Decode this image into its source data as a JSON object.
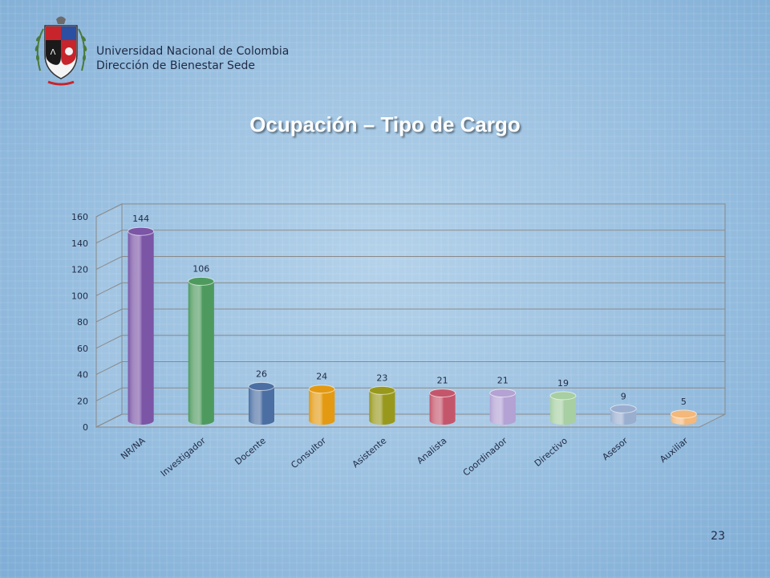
{
  "header": {
    "institution": "Universidad Nacional de Colombia",
    "department": "Dirección de Bienestar Sede"
  },
  "slide": {
    "title": "Ocupación – Tipo de Cargo",
    "page_number": "23"
  },
  "chart_data": {
    "type": "bar",
    "style": "3d-cylinder",
    "categories": [
      "NR/NA",
      "Investigador",
      "Docente",
      "Consultor",
      "Asistente",
      "Analista",
      "Coordinador",
      "Directivo",
      "Asesor",
      "Auxiliar"
    ],
    "values": [
      144,
      106,
      26,
      24,
      23,
      21,
      21,
      19,
      9,
      5
    ],
    "data_labels": [
      "144",
      "106",
      "26",
      "24",
      "23",
      "21",
      "21",
      "19",
      "9",
      "5"
    ],
    "colors": [
      "#7b55a6",
      "#4e9a5e",
      "#4b6fa3",
      "#e39a12",
      "#98981d",
      "#c4566c",
      "#b3a2d3",
      "#a7cfa2",
      "#9aaed0",
      "#f3b87a"
    ],
    "ylim": [
      0,
      160
    ],
    "yticks": [
      0,
      20,
      40,
      60,
      80,
      100,
      120,
      140,
      160
    ],
    "grid": true,
    "legend": "none"
  }
}
